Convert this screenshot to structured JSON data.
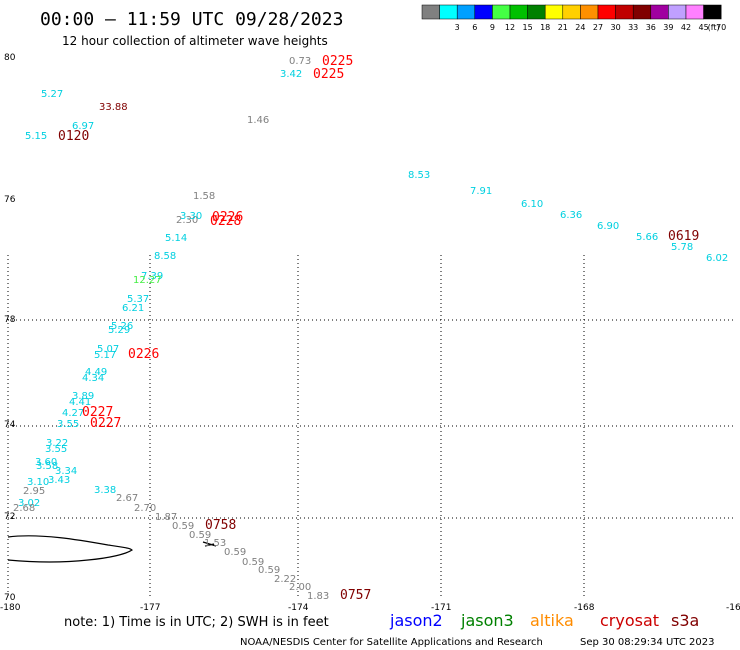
{
  "header": {
    "title": "00:00 – 11:59 UTC 09/28/2023",
    "subtitle": "12 hour collection of altimeter wave heights"
  },
  "legend": {
    "bins": [
      {
        "label": "",
        "color": "#808080"
      },
      {
        "label": "3",
        "color": "#00ffff"
      },
      {
        "label": "6",
        "color": "#00a0ff"
      },
      {
        "label": "9",
        "color": "#0000ff"
      },
      {
        "label": "12",
        "color": "#44ff44"
      },
      {
        "label": "15",
        "color": "#00c000"
      },
      {
        "label": "18",
        "color": "#008000"
      },
      {
        "label": "21",
        "color": "#ffff00"
      },
      {
        "label": "24",
        "color": "#ffd000"
      },
      {
        "label": "27",
        "color": "#ff9000"
      },
      {
        "label": "30",
        "color": "#ff0000"
      },
      {
        "label": "33",
        "color": "#c00000"
      },
      {
        "label": "36",
        "color": "#800000"
      },
      {
        "label": "39",
        "color": "#a000a0"
      },
      {
        "label": "42",
        "color": "#c0a0ff"
      },
      {
        "label": "45",
        "color": "#ff80ff"
      },
      {
        "label": "70",
        "color": "#000000"
      }
    ],
    "unit": "(ft)"
  },
  "axes": {
    "lat_labels": [
      "80",
      "76",
      "78",
      "74",
      "72",
      "70"
    ],
    "lon_labels": [
      "-180",
      "-177",
      "-174",
      "-171",
      "-168",
      "-16"
    ]
  },
  "colors": {
    "gray": "#808080",
    "cyan": "#00d0e0",
    "cyanlight": "#00e0e0",
    "green": "#44ee44",
    "red": "#ff0000",
    "darkred": "#800000",
    "blue": "#0000ff",
    "darkgreen": "#008000",
    "orange": "#ff8c00",
    "crimson": "#cc0000"
  },
  "observations": [
    {
      "text": "0.73",
      "color": "gray"
    },
    {
      "text": "0225",
      "color": "red"
    },
    {
      "text": "3.42",
      "color": "cyan"
    },
    {
      "text": "0225",
      "color": "red"
    },
    {
      "text": "5.27",
      "color": "cyan"
    },
    {
      "text": "33.88",
      "color": "darkred"
    },
    {
      "text": "1.46",
      "color": "gray"
    },
    {
      "text": "6.97",
      "color": "cyan"
    },
    {
      "text": "5.15",
      "color": "cyan"
    },
    {
      "text": "0120",
      "color": "darkred"
    },
    {
      "text": "8.53",
      "color": "cyan"
    },
    {
      "text": "7.91",
      "color": "cyan"
    },
    {
      "text": "1.58",
      "color": "gray"
    },
    {
      "text": "6.10",
      "color": "cyan"
    },
    {
      "text": "6.36",
      "color": "cyan"
    },
    {
      "text": "2.30",
      "color": "gray"
    },
    {
      "text": "3.30",
      "color": "cyan"
    },
    {
      "text": "0226",
      "color": "red"
    },
    {
      "text": "0228",
      "color": "red"
    },
    {
      "text": "6.90",
      "color": "cyan"
    },
    {
      "text": "5.14",
      "color": "cyan"
    },
    {
      "text": "5.66",
      "color": "cyan"
    },
    {
      "text": "0619",
      "color": "darkred"
    },
    {
      "text": "5.78",
      "color": "cyan"
    },
    {
      "text": "6.02",
      "color": "cyan"
    },
    {
      "text": "8.58",
      "color": "cyan"
    },
    {
      "text": "7.39",
      "color": "cyan"
    },
    {
      "text": "12.27",
      "color": "green"
    },
    {
      "text": "5.37",
      "color": "cyan"
    },
    {
      "text": "6.21",
      "color": "cyan"
    },
    {
      "text": "5.26",
      "color": "cyan"
    },
    {
      "text": "5.29",
      "color": "cyan"
    },
    {
      "text": "5.07",
      "color": "cyan"
    },
    {
      "text": "5.17",
      "color": "cyan"
    },
    {
      "text": "0226",
      "color": "red"
    },
    {
      "text": "4.49",
      "color": "cyan"
    },
    {
      "text": "4.34",
      "color": "cyan"
    },
    {
      "text": "3.89",
      "color": "cyan"
    },
    {
      "text": "4.41",
      "color": "cyan"
    },
    {
      "text": "4.27",
      "color": "cyan"
    },
    {
      "text": "0227",
      "color": "red"
    },
    {
      "text": "3.55",
      "color": "cyan"
    },
    {
      "text": "0227",
      "color": "red"
    },
    {
      "text": "3.22",
      "color": "cyan"
    },
    {
      "text": "3.55",
      "color": "cyan"
    },
    {
      "text": "3.60",
      "color": "cyan"
    },
    {
      "text": "3.58",
      "color": "cyan"
    },
    {
      "text": "3.34",
      "color": "cyan"
    },
    {
      "text": "3.10",
      "color": "cyan"
    },
    {
      "text": "3.43",
      "color": "cyan"
    },
    {
      "text": "2.95",
      "color": "gray"
    },
    {
      "text": "3.38",
      "color": "cyan"
    },
    {
      "text": "2.67",
      "color": "gray"
    },
    {
      "text": "3.02",
      "color": "cyan"
    },
    {
      "text": "2.68",
      "color": "gray"
    },
    {
      "text": "2.70",
      "color": "gray"
    },
    {
      "text": "1.87",
      "color": "gray"
    },
    {
      "text": "0.59",
      "color": "gray"
    },
    {
      "text": "0758",
      "color": "darkred"
    },
    {
      "text": "0.59",
      "color": "gray"
    },
    {
      "text": "1.53",
      "color": "gray"
    },
    {
      "text": "0.59",
      "color": "gray"
    },
    {
      "text": "0.59",
      "color": "gray"
    },
    {
      "text": "0.59",
      "color": "gray"
    },
    {
      "text": "2.22",
      "color": "gray"
    },
    {
      "text": "2.00",
      "color": "gray"
    },
    {
      "text": "1.83",
      "color": "gray"
    },
    {
      "text": "0757",
      "color": "darkred"
    }
  ],
  "footer": {
    "note": "note:  1) Time is in UTC;  2) SWH is in feet",
    "satellites": [
      {
        "name": "jason2",
        "color": "blue"
      },
      {
        "name": "jason3",
        "color": "darkgreen"
      },
      {
        "name": "altika",
        "color": "orange"
      },
      {
        "name": "cryosat",
        "color": "crimson"
      },
      {
        "name": "s3a",
        "color": "darkred"
      }
    ],
    "credit": "NOAA/NESDIS Center for Satellite Applications and Research",
    "timestamp": "Sep 30 08:29:34 UTC 2023"
  }
}
